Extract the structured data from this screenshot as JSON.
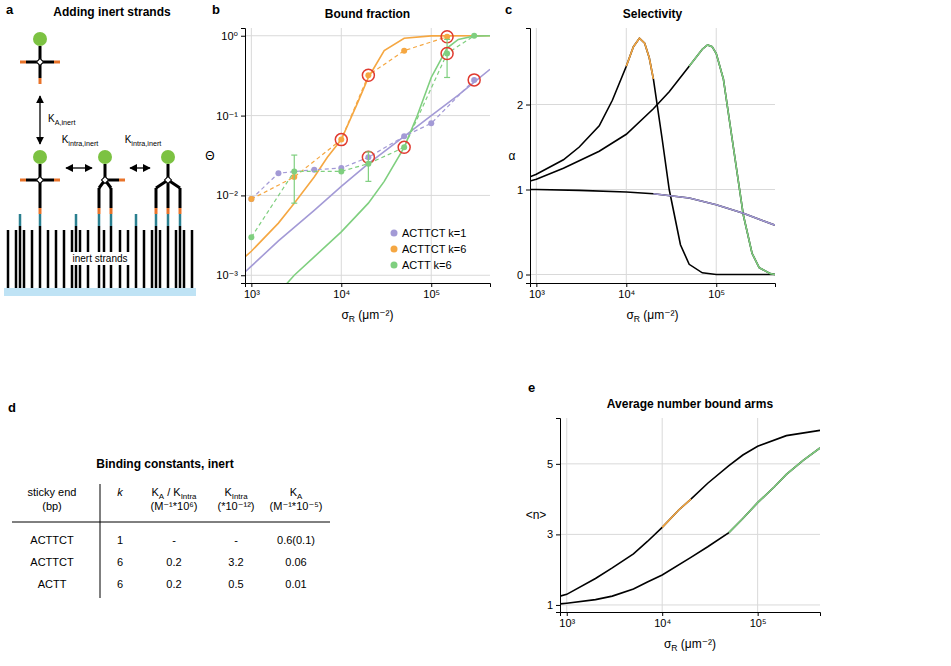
{
  "chart_data": [
    {
      "type": "line",
      "panel_label": "b",
      "title": "Bound fraction",
      "x_label": [
        {
          "text": "σ"
        },
        {
          "text": "R",
          "style": "sub"
        },
        {
          "text": " (μm⁻²)"
        }
      ],
      "y_label": "Θ",
      "log": true,
      "grid": true,
      "legend": "lower right",
      "xlim": [
        850,
        450000
      ],
      "xticks": [
        {
          "value": 1000,
          "label": "10³"
        },
        {
          "value": 10000,
          "label": "10⁴"
        },
        {
          "value": 100000,
          "label": "10⁵"
        }
      ],
      "ylim": [
        0.0008,
        1.25
      ],
      "yticks": [
        {
          "value": 0.001,
          "label": "10⁻³"
        },
        {
          "value": 0.01,
          "label": "10⁻²"
        },
        {
          "value": 0.1,
          "label": "10⁻¹"
        },
        {
          "value": 1,
          "label": "10⁰"
        }
      ],
      "series": [
        {
          "name": "ACTTCT k=1",
          "color": "#a39ad6",
          "marker": "circle",
          "line_style": "dashed",
          "x": [
            1000,
            2000,
            5000,
            10000,
            20000,
            50000,
            100000,
            300000
          ],
          "values": [
            0.009,
            0.019,
            0.021,
            0.022,
            0.03,
            0.055,
            0.08,
            0.28
          ],
          "errors": [
            null,
            null,
            null,
            null,
            null,
            null,
            null,
            null
          ],
          "circled": [
            false,
            false,
            false,
            false,
            true,
            false,
            false,
            true
          ],
          "model": {
            "line_style": "solid",
            "x": [
              850,
              1000,
              2000,
              5000,
              10000,
              20000,
              50000,
              100000,
              200000,
              450000
            ],
            "values": [
              0.0011,
              0.0013,
              0.0027,
              0.0065,
              0.013,
              0.025,
              0.055,
              0.1,
              0.18,
              0.38
            ]
          }
        },
        {
          "name": "ACTTCT k=6",
          "color": "#f5a742",
          "marker": "circle",
          "line_style": "dashed",
          "x": [
            1000,
            3000,
            10000,
            20000,
            50000,
            150000
          ],
          "values": [
            0.009,
            0.017,
            0.05,
            0.32,
            0.65,
            0.97
          ],
          "errors": [
            null,
            null,
            null,
            null,
            null,
            null
          ],
          "circled": [
            false,
            false,
            true,
            true,
            false,
            true
          ],
          "model": {
            "line_style": "solid",
            "x": [
              850,
              1000,
              2000,
              3000,
              5000,
              7000,
              10000,
              15000,
              20000,
              30000,
              50000,
              100000,
              450000
            ],
            "values": [
              0.0017,
              0.002,
              0.0045,
              0.008,
              0.017,
              0.03,
              0.05,
              0.14,
              0.3,
              0.65,
              0.93,
              0.995,
              1.0
            ]
          }
        },
        {
          "name": "ACTT k=6",
          "color": "#7fcf7f",
          "marker": "circle",
          "line_style": "dashed",
          "x": [
            1000,
            3000,
            10000,
            20000,
            50000,
            150000,
            300000
          ],
          "values": [
            0.003,
            0.02,
            0.02,
            0.025,
            0.04,
            0.6,
            1.0
          ],
          "errors": [
            null,
            0.012,
            null,
            0.01,
            null,
            0.3,
            null
          ],
          "circled": [
            false,
            false,
            false,
            false,
            true,
            true,
            false
          ],
          "model": {
            "line_style": "solid",
            "x": [
              2000,
              3000,
              5000,
              10000,
              20000,
              30000,
              50000,
              70000,
              100000,
              150000,
              200000,
              300000,
              450000
            ],
            "values": [
              0.0006,
              0.001,
              0.0017,
              0.0035,
              0.008,
              0.015,
              0.04,
              0.1,
              0.3,
              0.7,
              0.9,
              0.99,
              1.0
            ]
          }
        }
      ]
    },
    {
      "type": "line",
      "panel_label": "c",
      "title": "Selectivity",
      "x_label": [
        {
          "text": "σ"
        },
        {
          "text": "R",
          "style": "sub"
        },
        {
          "text": " (μm⁻²)"
        }
      ],
      "y_label": "α",
      "log": "x",
      "grid": true,
      "xlim": [
        850,
        450000
      ],
      "xticks": [
        {
          "value": 1000,
          "label": "10³"
        },
        {
          "value": 10000,
          "label": "10⁴"
        },
        {
          "value": 100000,
          "label": "10⁵"
        }
      ],
      "ylim": [
        -0.1,
        2.9
      ],
      "yticks": [
        0,
        1,
        2
      ],
      "series": [
        {
          "color": "#000000",
          "x": [
            850,
            1000,
            2000,
            3000,
            5000,
            7000,
            10000,
            12000,
            14000,
            16000,
            18000,
            20000,
            25000,
            30000,
            40000,
            50000,
            70000,
            100000,
            450000
          ],
          "values": [
            1.15,
            1.18,
            1.35,
            1.5,
            1.75,
            2.05,
            2.45,
            2.68,
            2.78,
            2.72,
            2.55,
            2.3,
            1.6,
            1.0,
            0.35,
            0.12,
            0.02,
            0,
            0
          ]
        },
        {
          "color": "#f5a742",
          "x": [
            10000,
            12000,
            14000,
            16000,
            18000,
            20000
          ],
          "values": [
            2.45,
            2.68,
            2.78,
            2.72,
            2.55,
            2.3
          ]
        },
        {
          "color": "#000000",
          "x": [
            850,
            1000,
            2000,
            5000,
            10000,
            20000,
            30000,
            50000,
            70000,
            80000,
            90000,
            100000,
            120000,
            150000,
            200000,
            250000,
            300000,
            400000,
            450000
          ],
          "values": [
            1.1,
            1.12,
            1.25,
            1.45,
            1.65,
            1.95,
            2.15,
            2.45,
            2.65,
            2.7,
            2.68,
            2.6,
            2.3,
            1.6,
            0.7,
            0.25,
            0.08,
            0.01,
            0
          ]
        },
        {
          "color": "#7fcf7f",
          "x": [
            50000,
            70000,
            80000,
            90000,
            100000,
            120000,
            150000,
            200000,
            250000,
            300000,
            400000,
            450000
          ],
          "values": [
            2.45,
            2.65,
            2.7,
            2.68,
            2.6,
            2.3,
            1.6,
            0.7,
            0.25,
            0.08,
            0.01,
            0
          ]
        },
        {
          "color": "#000000",
          "x": [
            850,
            1000,
            3000,
            10000,
            20000,
            50000,
            100000,
            200000,
            450000
          ],
          "values": [
            1.0,
            1.0,
            0.99,
            0.97,
            0.95,
            0.9,
            0.82,
            0.72,
            0.58
          ]
        },
        {
          "color": "#a39ad6",
          "x": [
            20000,
            50000,
            100000,
            200000,
            450000
          ],
          "values": [
            0.95,
            0.9,
            0.82,
            0.72,
            0.58
          ]
        }
      ]
    },
    {
      "type": "line",
      "panel_label": "e",
      "title": "Average number bound arms",
      "x_label": [
        {
          "text": "σ"
        },
        {
          "text": "R",
          "style": "sub"
        },
        {
          "text": " (μm⁻²)"
        }
      ],
      "y_label": "<n>",
      "log": "x",
      "grid": true,
      "xlim": [
        850,
        450000
      ],
      "xticks": [
        {
          "value": 1000,
          "label": "10³"
        },
        {
          "value": 10000,
          "label": "10⁴"
        },
        {
          "value": 100000,
          "label": "10⁵"
        }
      ],
      "ylim": [
        0.8,
        6.3
      ],
      "yticks": [
        1,
        3,
        5
      ],
      "series": [
        {
          "color": "#000000",
          "x": [
            850,
            1000,
            2000,
            3000,
            5000,
            7000,
            10000,
            15000,
            20000,
            30000,
            50000,
            70000,
            100000,
            200000,
            450000
          ],
          "values": [
            1.25,
            1.3,
            1.75,
            2.05,
            2.45,
            2.8,
            3.2,
            3.7,
            4.0,
            4.45,
            4.95,
            5.25,
            5.5,
            5.8,
            5.95
          ]
        },
        {
          "color": "#f5a742",
          "x": [
            10000,
            15000,
            20000
          ],
          "values": [
            3.2,
            3.7,
            4.0
          ]
        },
        {
          "color": "#000000",
          "x": [
            850,
            1000,
            2000,
            3000,
            5000,
            7000,
            10000,
            20000,
            30000,
            50000,
            70000,
            100000,
            150000,
            200000,
            300000,
            450000
          ],
          "values": [
            1.03,
            1.05,
            1.15,
            1.25,
            1.45,
            1.65,
            1.85,
            2.35,
            2.65,
            3.05,
            3.45,
            3.9,
            4.35,
            4.7,
            5.1,
            5.45
          ]
        },
        {
          "color": "#7fcf7f",
          "x": [
            50000,
            70000,
            100000,
            150000,
            200000,
            300000,
            450000
          ],
          "values": [
            3.05,
            3.45,
            3.9,
            4.35,
            4.7,
            5.1,
            5.45
          ]
        }
      ]
    }
  ],
  "diagram": {
    "panel_label": "a",
    "title": "Adding inert strands",
    "labels": {
      "k_a_inert": [
        {
          "text": "K"
        },
        {
          "text": "A,inert",
          "style": "sub"
        }
      ],
      "k_intra_inert_left": [
        {
          "text": "K"
        },
        {
          "text": "intra,inert",
          "style": "sub"
        }
      ],
      "k_intra_inert_right": [
        {
          "text": "K"
        },
        {
          "text": "intra,inert",
          "style": "sub"
        }
      ],
      "inert_strands": "inert strands"
    }
  },
  "table": {
    "panel_label": "d",
    "title": "Binding constants, inert",
    "header": [
      [
        "sticky end",
        "(bp)"
      ],
      [
        [
          {
            "text": "k",
            "style": "italic"
          }
        ]
      ],
      [
        [
          {
            "text": "K"
          },
          {
            "text": "A",
            "style": "sub"
          },
          {
            "text": " / K"
          },
          {
            "text": "Intra",
            "style": "sub"
          }
        ],
        "(M⁻¹*10⁶)"
      ],
      [
        [
          {
            "text": "K"
          },
          {
            "text": "Intra",
            "style": "sub"
          }
        ],
        "(*10⁻¹²)"
      ],
      [
        [
          {
            "text": "K"
          },
          {
            "text": "A",
            "style": "sub"
          }
        ],
        "(M⁻¹*10⁻⁵)"
      ]
    ],
    "rows": [
      [
        "ACTTCT",
        "1",
        "-",
        "-",
        "0.6(0.1)"
      ],
      [
        "ACTTCT",
        "6",
        "0.2",
        "3.2",
        "0.06"
      ],
      [
        "ACTT",
        "6",
        "0.2",
        "0.5",
        "0.01"
      ]
    ]
  }
}
